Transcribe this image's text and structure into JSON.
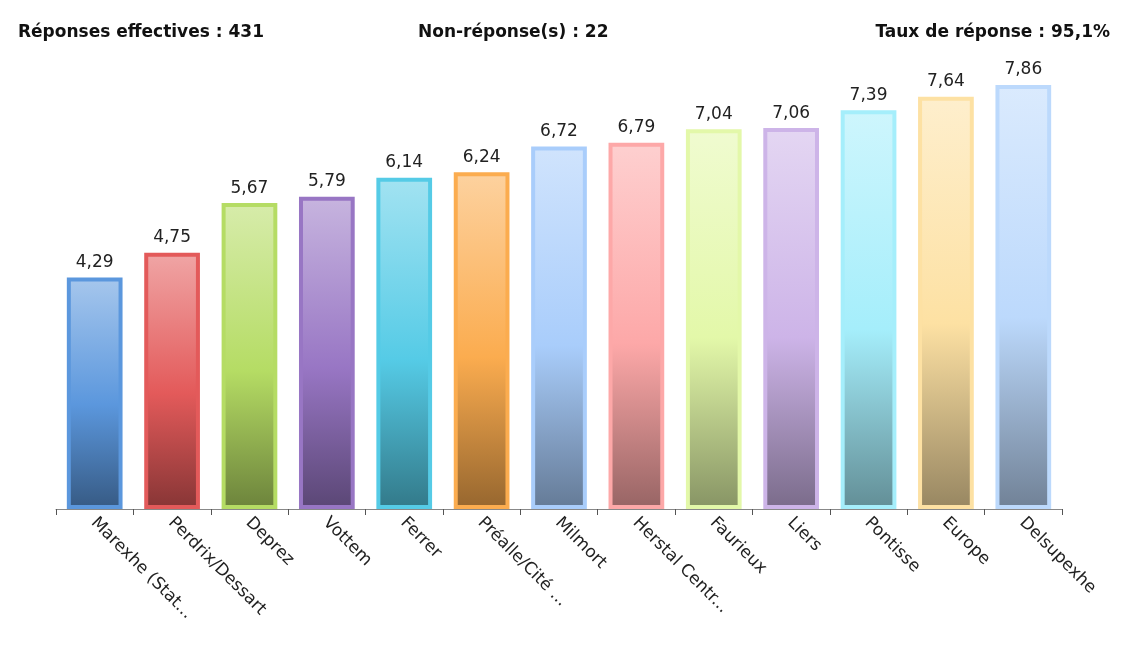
{
  "chart_data": {
    "type": "bar",
    "annotations": [
      "Réponses effectives : 431",
      "Non-réponse(s) : 22",
      "Taux de réponse : 95,1%"
    ],
    "categories": [
      "Marexhe (Stat...",
      "Perdrix/Dessart",
      "Deprez",
      "Vottem",
      "Ferrer",
      "Préalle/Cité ...",
      "Milmort",
      "Herstal Centr...",
      "Faurieux",
      "Liers",
      "Pontisse",
      "Europe",
      "Delsupexhe"
    ],
    "values": [
      4.29,
      4.75,
      5.67,
      5.79,
      6.14,
      6.24,
      6.72,
      6.79,
      7.04,
      7.06,
      7.39,
      7.64,
      7.86
    ],
    "value_labels": [
      "4,29",
      "4,75",
      "5,67",
      "5,79",
      "6,14",
      "6,24",
      "6,72",
      "6,79",
      "7,04",
      "7,06",
      "7,39",
      "7,64",
      "7,86"
    ],
    "colors": [
      "#5b97dd",
      "#e35a5a",
      "#b5dc64",
      "#9876c4",
      "#55cbe6",
      "#fbac4f",
      "#a9cdfb",
      "#fda8a8",
      "#e3f8a9",
      "#cdb4e8",
      "#a5eefb",
      "#fde1a3",
      "#bcd9fc"
    ]
  }
}
